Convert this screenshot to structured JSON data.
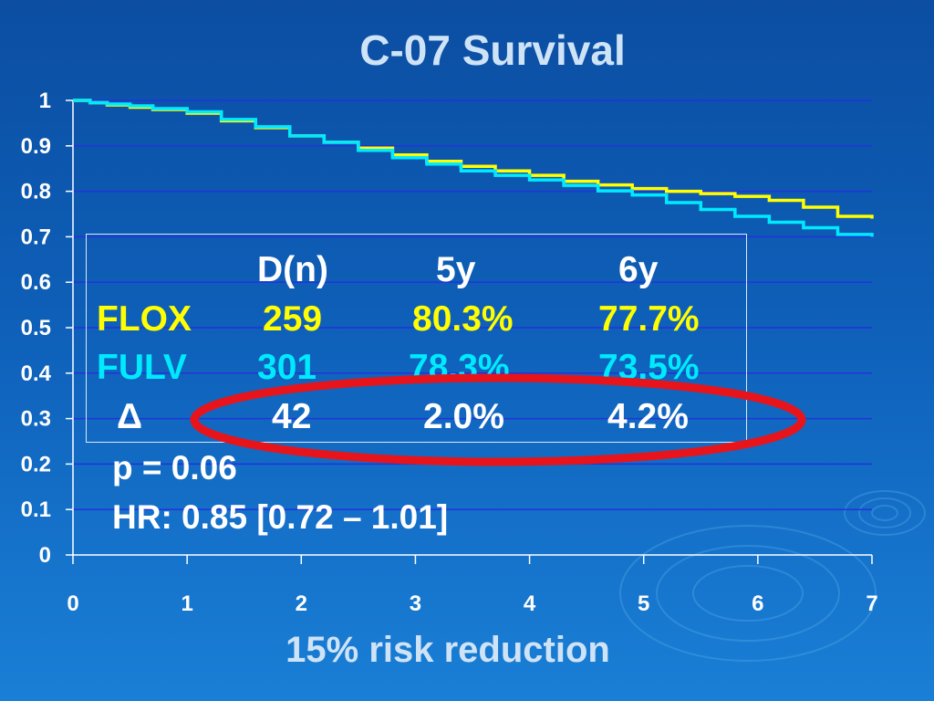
{
  "slide": {
    "title": "C-07 Survival",
    "footer": "15%  risk reduction"
  },
  "colors": {
    "flox": "#ffff00",
    "fulv": "#00eaff",
    "highlight": "#e8141b",
    "grid": "#2233dd"
  },
  "stats_table": {
    "headers": [
      "D(n)",
      "5y",
      "6y"
    ],
    "rows": [
      {
        "label": "FLOX",
        "values": [
          "259",
          "80.3%",
          "77.7%"
        ],
        "color": "#ffff00"
      },
      {
        "label": "FULV",
        "values": [
          "301",
          "78.3%",
          "73.5%"
        ],
        "color": "#00eaff"
      },
      {
        "label": "Δ",
        "values": [
          "42",
          "2.0%",
          "4.2%"
        ],
        "color": "#ffffff"
      }
    ],
    "p_value": "p = 0.06",
    "hazard_ratio": "HR: 0.85 [0.72 – 1.01]"
  },
  "chart_data": {
    "type": "line",
    "title": "C-07 Survival",
    "xlabel": "",
    "ylabel": "",
    "xlim": [
      0,
      7
    ],
    "ylim": [
      0,
      1
    ],
    "x_ticks": [
      "0",
      "1",
      "2",
      "3",
      "4",
      "5",
      "6",
      "7"
    ],
    "y_ticks": [
      "0",
      "0.1",
      "0.2",
      "0.3",
      "0.4",
      "0.5",
      "0.6",
      "0.7",
      "0.8",
      "0.9",
      "1"
    ],
    "grid": true,
    "series": [
      {
        "name": "FLOX",
        "color": "#ffff00",
        "x": [
          0,
          0.15,
          0.3,
          0.5,
          0.7,
          1.0,
          1.3,
          1.6,
          1.9,
          2.2,
          2.5,
          2.8,
          3.1,
          3.4,
          3.7,
          4.0,
          4.3,
          4.6,
          4.9,
          5.2,
          5.5,
          5.8,
          6.1,
          6.4,
          6.7,
          7.0
        ],
        "y": [
          1.0,
          0.995,
          0.99,
          0.985,
          0.98,
          0.972,
          0.955,
          0.94,
          0.922,
          0.908,
          0.895,
          0.88,
          0.866,
          0.855,
          0.845,
          0.835,
          0.822,
          0.814,
          0.806,
          0.8,
          0.795,
          0.789,
          0.78,
          0.765,
          0.745,
          0.74
        ]
      },
      {
        "name": "FULV",
        "color": "#00eaff",
        "x": [
          0,
          0.15,
          0.3,
          0.5,
          0.7,
          1.0,
          1.3,
          1.6,
          1.9,
          2.2,
          2.5,
          2.8,
          3.1,
          3.4,
          3.7,
          4.0,
          4.3,
          4.6,
          4.9,
          5.2,
          5.5,
          5.8,
          6.1,
          6.4,
          6.7,
          7.0
        ],
        "y": [
          1.0,
          0.995,
          0.992,
          0.988,
          0.982,
          0.975,
          0.958,
          0.942,
          0.922,
          0.908,
          0.89,
          0.874,
          0.86,
          0.845,
          0.835,
          0.825,
          0.813,
          0.801,
          0.792,
          0.775,
          0.76,
          0.745,
          0.732,
          0.72,
          0.705,
          0.7
        ]
      }
    ]
  }
}
